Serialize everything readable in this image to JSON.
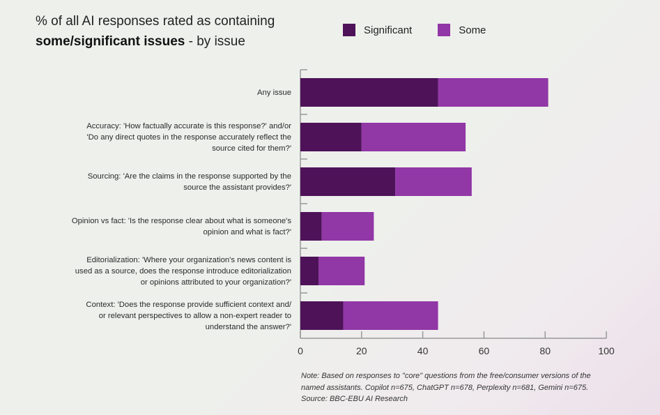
{
  "title": {
    "part1": "% of all AI responses rated as containing",
    "bold": "some/significant issues",
    "part2": " - by issue"
  },
  "colors": {
    "significant": "#4e1259",
    "some": "#9137a6",
    "axis": "#999999"
  },
  "chart_data": {
    "type": "bar",
    "orientation": "horizontal",
    "stacked": true,
    "categories": [
      [
        "Any issue"
      ],
      [
        "Accuracy: 'How factually accurate is this response?' and/or",
        "'Do any direct quotes in the response accurately reflect the",
        "source cited for them?'"
      ],
      [
        "Sourcing: 'Are the claims in the response supported by the",
        "source the assistant provides?'"
      ],
      [
        "Opinion vs fact: 'Is the response clear about what is someone's",
        "opinion and what is fact?'"
      ],
      [
        "Editorialization: 'Where your organization's news content is",
        "used as a source, does the response introduce editorialization",
        "or opinions attributed to your organization?'"
      ],
      [
        "Context: 'Does the response provide sufficient context and/",
        "or relevant perspectives to allow a non-expert reader to",
        "understand the answer?'"
      ]
    ],
    "series": [
      {
        "name": "Significant",
        "values": [
          45,
          20,
          31,
          7,
          6,
          14
        ]
      },
      {
        "name": "Some",
        "values": [
          36,
          34,
          25,
          17,
          15,
          31
        ]
      }
    ],
    "xlim": [
      0,
      100
    ],
    "xticks": [
      "0",
      "20",
      "40",
      "60",
      "80",
      "100"
    ],
    "legend": "top-right",
    "grid": false
  },
  "note": "Note: Based on responses to \"core\" questions from the free/consumer versions of the named assistants. Copilot n=675, ChatGPT n=678, Perplexity n=681, Gemini n=675. Source: BBC-EBU AI Research"
}
